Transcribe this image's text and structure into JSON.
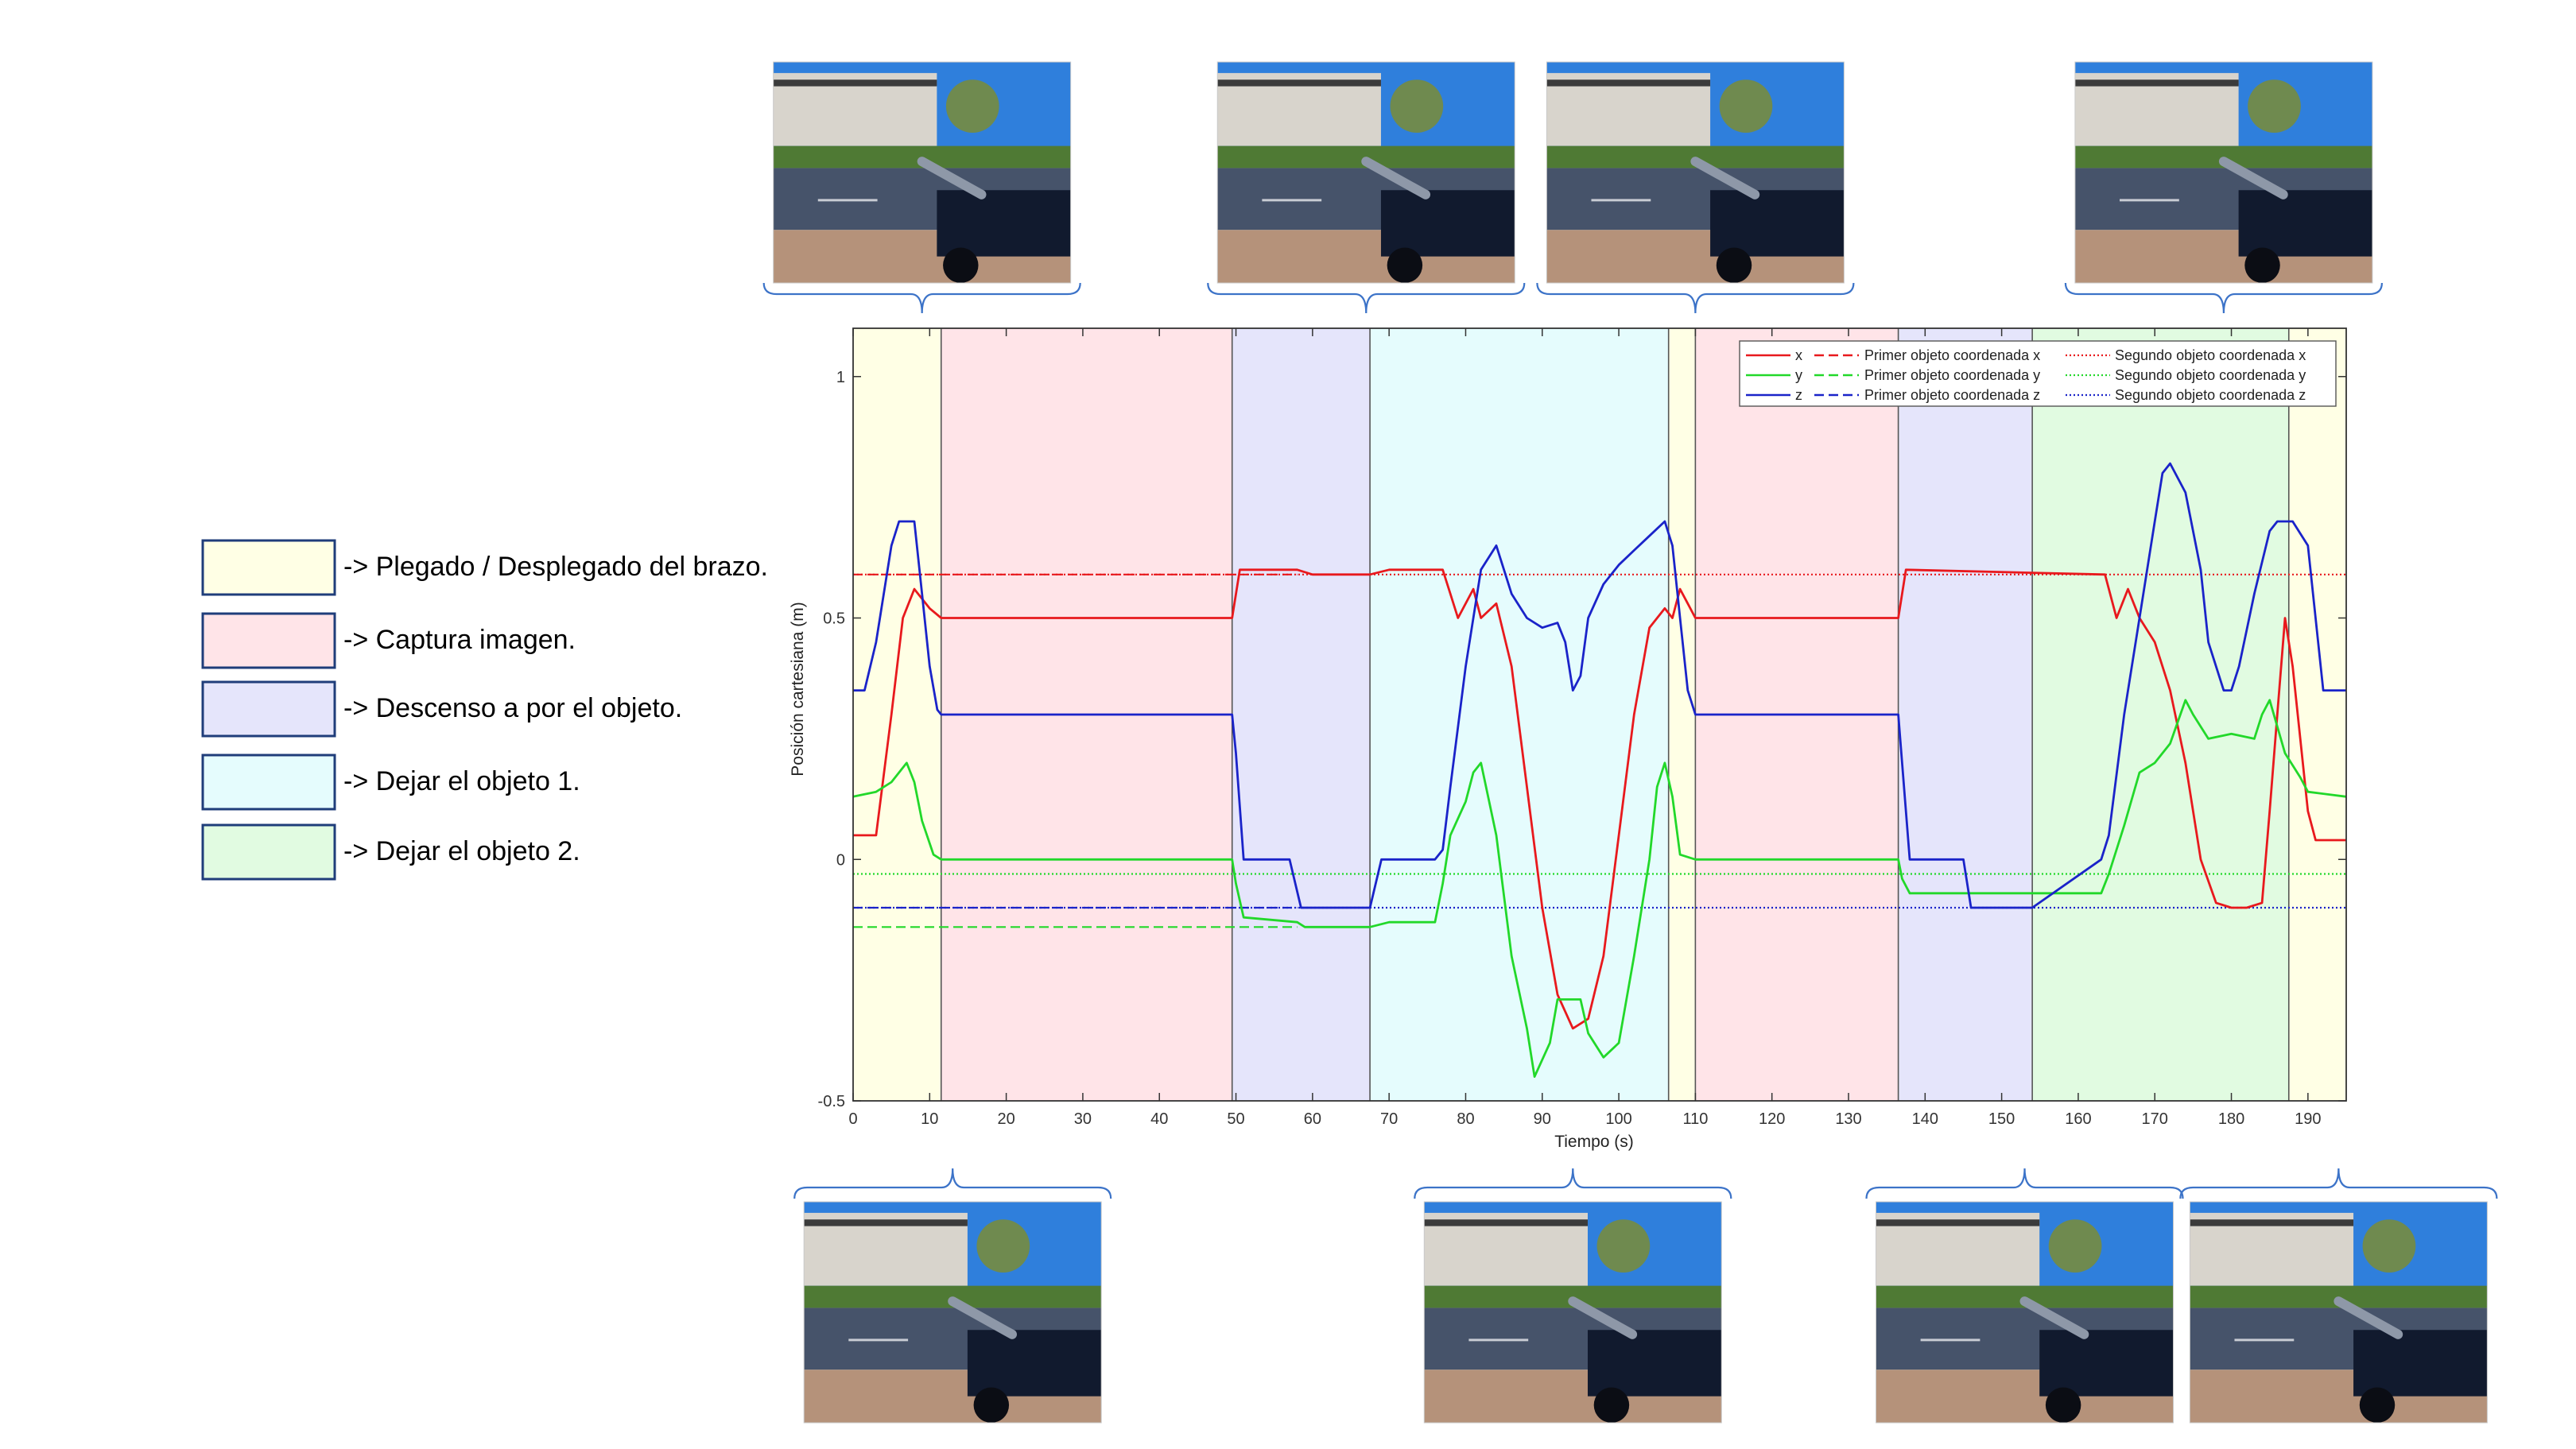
{
  "phases_legend": [
    {
      "label": "->  Plegado / Desplegado del brazo.",
      "color": "#ffffe5"
    },
    {
      "label": "-> Captura imagen.",
      "color": "#ffe4e8"
    },
    {
      "label": "->  Descenso a por el objeto.",
      "color": "#e5e5fb"
    },
    {
      "label": "-> Dejar el objeto 1.",
      "color": "#e5fcfd"
    },
    {
      "label": "->  Dejar el objeto 2.",
      "color": "#e1fbe1"
    }
  ],
  "chart_data": {
    "type": "line",
    "xlabel": "Tiempo (s)",
    "ylabel": "Posición cartesiana (m)",
    "xlim": [
      0,
      195
    ],
    "ylim": [
      -0.5,
      1.1
    ],
    "xticks": [
      0,
      10,
      20,
      30,
      40,
      50,
      60,
      70,
      80,
      90,
      100,
      110,
      120,
      130,
      140,
      150,
      160,
      170,
      180,
      190
    ],
    "yticks": [
      -0.5,
      0,
      0.5,
      1
    ],
    "ytick_labels": [
      "-0.5",
      "0",
      "0.5",
      "1"
    ],
    "legend_position": "top-right",
    "phases": [
      {
        "start": 0,
        "end": 11.5,
        "phase": 0
      },
      {
        "start": 11.5,
        "end": 49.5,
        "phase": 1
      },
      {
        "start": 49.5,
        "end": 67.5,
        "phase": 2
      },
      {
        "start": 67.5,
        "end": 106.5,
        "phase": 3
      },
      {
        "start": 106.5,
        "end": 110,
        "phase": 0
      },
      {
        "start": 110,
        "end": 136.5,
        "phase": 1
      },
      {
        "start": 136.5,
        "end": 154,
        "phase": 2
      },
      {
        "start": 154,
        "end": 187.5,
        "phase": 4
      },
      {
        "start": 187.5,
        "end": 195,
        "phase": 0
      }
    ],
    "series": [
      {
        "name": "x",
        "color": "#e8191d",
        "x": [
          0,
          3,
          5,
          6.5,
          8,
          10,
          11.5,
          49.5,
          50.5,
          58,
          60,
          67.5,
          70,
          77,
          78,
          79,
          81,
          82,
          84,
          86,
          88,
          90,
          92,
          94,
          96,
          98,
          100,
          102,
          104,
          106,
          107,
          108,
          109,
          110,
          136.5,
          137.5,
          163.5,
          165,
          166.5,
          168,
          170,
          172,
          174,
          175,
          176,
          178,
          180,
          182,
          184,
          185,
          186,
          187,
          188,
          189,
          190,
          191,
          192,
          195
        ],
        "y": [
          0.05,
          0.05,
          0.3,
          0.5,
          0.56,
          0.52,
          0.5,
          0.5,
          0.6,
          0.6,
          0.59,
          0.59,
          0.6,
          0.6,
          0.55,
          0.5,
          0.56,
          0.5,
          0.53,
          0.4,
          0.15,
          -0.1,
          -0.28,
          -0.35,
          -0.33,
          -0.2,
          0.05,
          0.3,
          0.48,
          0.52,
          0.5,
          0.56,
          0.53,
          0.5,
          0.5,
          0.6,
          0.59,
          0.5,
          0.56,
          0.5,
          0.45,
          0.35,
          0.2,
          0.1,
          0.0,
          -0.09,
          -0.1,
          -0.1,
          -0.09,
          0.1,
          0.3,
          0.5,
          0.4,
          0.25,
          0.1,
          0.04,
          0.04,
          0.04
        ]
      },
      {
        "name": "y",
        "color": "#22d82a",
        "x": [
          0,
          3,
          5,
          7,
          8,
          9,
          10.5,
          11.5,
          49.5,
          50,
          51,
          58,
          59,
          67.5,
          70,
          76,
          77,
          78,
          80,
          81,
          82,
          84,
          86,
          88,
          89,
          91,
          92,
          95,
          96,
          98,
          100,
          102,
          104,
          105,
          106,
          107,
          108,
          110,
          136.5,
          137,
          138,
          145,
          146,
          154,
          163,
          164,
          166,
          168,
          170,
          172,
          174,
          175,
          177,
          180,
          183,
          184,
          185,
          187,
          189,
          190,
          195
        ],
        "y": [
          0.13,
          0.14,
          0.16,
          0.2,
          0.16,
          0.08,
          0.01,
          0.0,
          0.0,
          -0.05,
          -0.12,
          -0.13,
          -0.14,
          -0.14,
          -0.13,
          -0.13,
          -0.05,
          0.05,
          0.12,
          0.18,
          0.2,
          0.05,
          -0.2,
          -0.35,
          -0.45,
          -0.38,
          -0.29,
          -0.29,
          -0.36,
          -0.41,
          -0.38,
          -0.2,
          0.0,
          0.15,
          0.2,
          0.13,
          0.01,
          0.0,
          0.0,
          -0.04,
          -0.07,
          -0.07,
          -0.07,
          -0.07,
          -0.07,
          -0.03,
          0.07,
          0.18,
          0.2,
          0.24,
          0.33,
          0.3,
          0.25,
          0.26,
          0.25,
          0.3,
          0.33,
          0.22,
          0.17,
          0.14,
          0.13
        ]
      },
      {
        "name": "z",
        "color": "#1a23c9",
        "x": [
          0,
          1.5,
          3,
          5,
          6,
          8,
          9,
          10,
          11,
          11.5,
          49.5,
          50,
          51,
          57,
          58.5,
          67.5,
          69,
          76,
          77,
          78,
          80,
          82,
          84,
          86,
          88,
          90,
          92,
          93,
          94,
          95,
          96,
          98,
          100,
          102,
          104,
          106,
          107,
          108,
          109,
          110,
          136.5,
          137,
          138,
          145,
          146,
          154,
          163,
          164,
          166,
          168,
          170,
          171,
          172,
          174,
          176,
          177,
          179,
          180,
          181,
          183,
          185,
          186,
          188,
          190,
          192,
          193,
          195
        ],
        "y": [
          0.35,
          0.35,
          0.45,
          0.65,
          0.7,
          0.7,
          0.55,
          0.4,
          0.31,
          0.3,
          0.3,
          0.22,
          0.0,
          0.0,
          -0.1,
          -0.1,
          0.0,
          0.0,
          0.02,
          0.15,
          0.4,
          0.6,
          0.65,
          0.55,
          0.5,
          0.48,
          0.49,
          0.45,
          0.35,
          0.38,
          0.5,
          0.57,
          0.61,
          0.64,
          0.67,
          0.7,
          0.65,
          0.5,
          0.35,
          0.3,
          0.3,
          0.2,
          0.0,
          0.0,
          -0.1,
          -0.1,
          0.0,
          0.05,
          0.3,
          0.5,
          0.7,
          0.8,
          0.82,
          0.76,
          0.6,
          0.45,
          0.35,
          0.35,
          0.4,
          0.55,
          0.68,
          0.7,
          0.7,
          0.65,
          0.35,
          0.35,
          0.35
        ]
      }
    ],
    "reference_lines": [
      {
        "name": "Primer objeto coordenada x",
        "color": "#e8191d",
        "style": "dashed",
        "y": 0.59,
        "x_range": [
          0,
          58
        ]
      },
      {
        "name": "Primer objeto coordenada y",
        "color": "#22d82a",
        "style": "dashed",
        "y": -0.14,
        "x_range": [
          0,
          58
        ]
      },
      {
        "name": "Primer objeto coordenada z",
        "color": "#1a23c9",
        "style": "dashed",
        "y": -0.1,
        "x_range": [
          0,
          58
        ]
      },
      {
        "name": "Segundo objeto coordenada x",
        "color": "#e8191d",
        "style": "dotted",
        "y": 0.59,
        "x_range": [
          0,
          195
        ]
      },
      {
        "name": "Segundo objeto coordenada y",
        "color": "#22d82a",
        "style": "dotted",
        "y": -0.03,
        "x_range": [
          0,
          195
        ]
      },
      {
        "name": "Segundo objeto coordenada z",
        "color": "#1a23c9",
        "style": "dotted",
        "y": -0.1,
        "x_range": [
          0,
          195
        ]
      }
    ]
  },
  "photo_markers": {
    "top": [
      9,
      67,
      110,
      179
    ],
    "bottom": [
      13,
      94,
      153,
      194
    ]
  }
}
